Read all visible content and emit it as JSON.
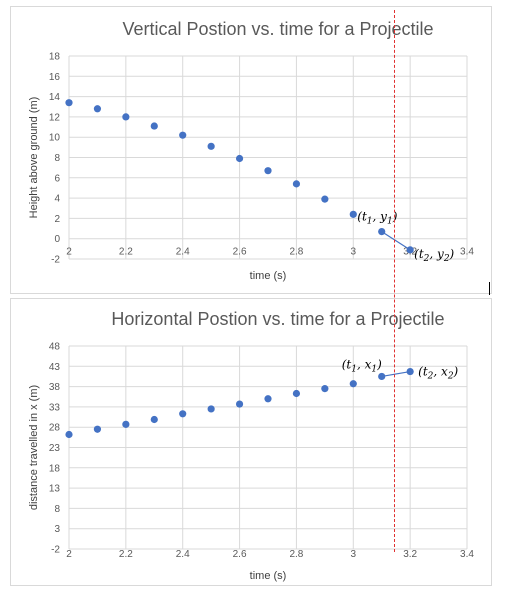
{
  "colors": {
    "series": "#4472c4",
    "guide": "#e03030",
    "grid": "#d9d9d9"
  },
  "chart_data": [
    {
      "type": "scatter",
      "title": "Vertical Postion vs. time for a Projectile",
      "xlabel": "time (s)",
      "ylabel": "Height above ground (m)",
      "xlim": [
        2,
        3.4
      ],
      "ylim": [
        -2,
        18
      ],
      "xticks": [
        "2",
        "2.2",
        "2.4",
        "2.6",
        "2.8",
        "3",
        "3.2",
        "3.4"
      ],
      "yticks": [
        "-2",
        "0",
        "2",
        "4",
        "6",
        "8",
        "10",
        "12",
        "14",
        "16",
        "18"
      ],
      "grid": true,
      "series": [
        {
          "x": [
            2.0,
            2.1,
            2.2,
            2.3,
            2.4,
            2.5,
            2.6,
            2.7,
            2.8,
            2.9,
            3.0,
            3.1,
            3.2
          ],
          "y": [
            13.4,
            12.8,
            12.0,
            11.1,
            10.2,
            9.1,
            7.9,
            6.7,
            5.4,
            3.9,
            2.4,
            0.7,
            -1.1
          ]
        }
      ],
      "annotations": [
        {
          "sub1": "t",
          "sub2": "y",
          "index": "1",
          "x": 3.0,
          "y": 2.4
        },
        {
          "sub1": "t",
          "sub2": "y",
          "index": "2",
          "x": 3.2,
          "y": -1.1
        }
      ]
    },
    {
      "type": "scatter",
      "title": "Horizontal Postion vs. time for a Projectile",
      "xlabel": "time (s)",
      "ylabel": "distance travelled in x (m)",
      "xlim": [
        2,
        3.4
      ],
      "ylim": [
        -2,
        48
      ],
      "xticks": [
        "2",
        "2.2",
        "2.4",
        "2.6",
        "2.8",
        "3",
        "3.2",
        "3.4"
      ],
      "yticks": [
        "-2",
        "3",
        "8",
        "13",
        "18",
        "23",
        "28",
        "33",
        "38",
        "43",
        "48"
      ],
      "grid": true,
      "series": [
        {
          "x": [
            2.0,
            2.1,
            2.2,
            2.3,
            2.4,
            2.5,
            2.6,
            2.7,
            2.8,
            2.9,
            3.0,
            3.1,
            3.2
          ],
          "y": [
            26.2,
            27.5,
            28.7,
            29.9,
            31.3,
            32.5,
            33.7,
            35.0,
            36.3,
            37.5,
            38.7,
            40.5,
            41.7
          ]
        }
      ],
      "annotations": [
        {
          "sub1": "t",
          "sub2": "x",
          "index": "1",
          "x": 3.1,
          "y": 40.5
        },
        {
          "sub1": "t",
          "sub2": "x",
          "index": "2",
          "x": 3.2,
          "y": 41.7
        }
      ]
    }
  ]
}
